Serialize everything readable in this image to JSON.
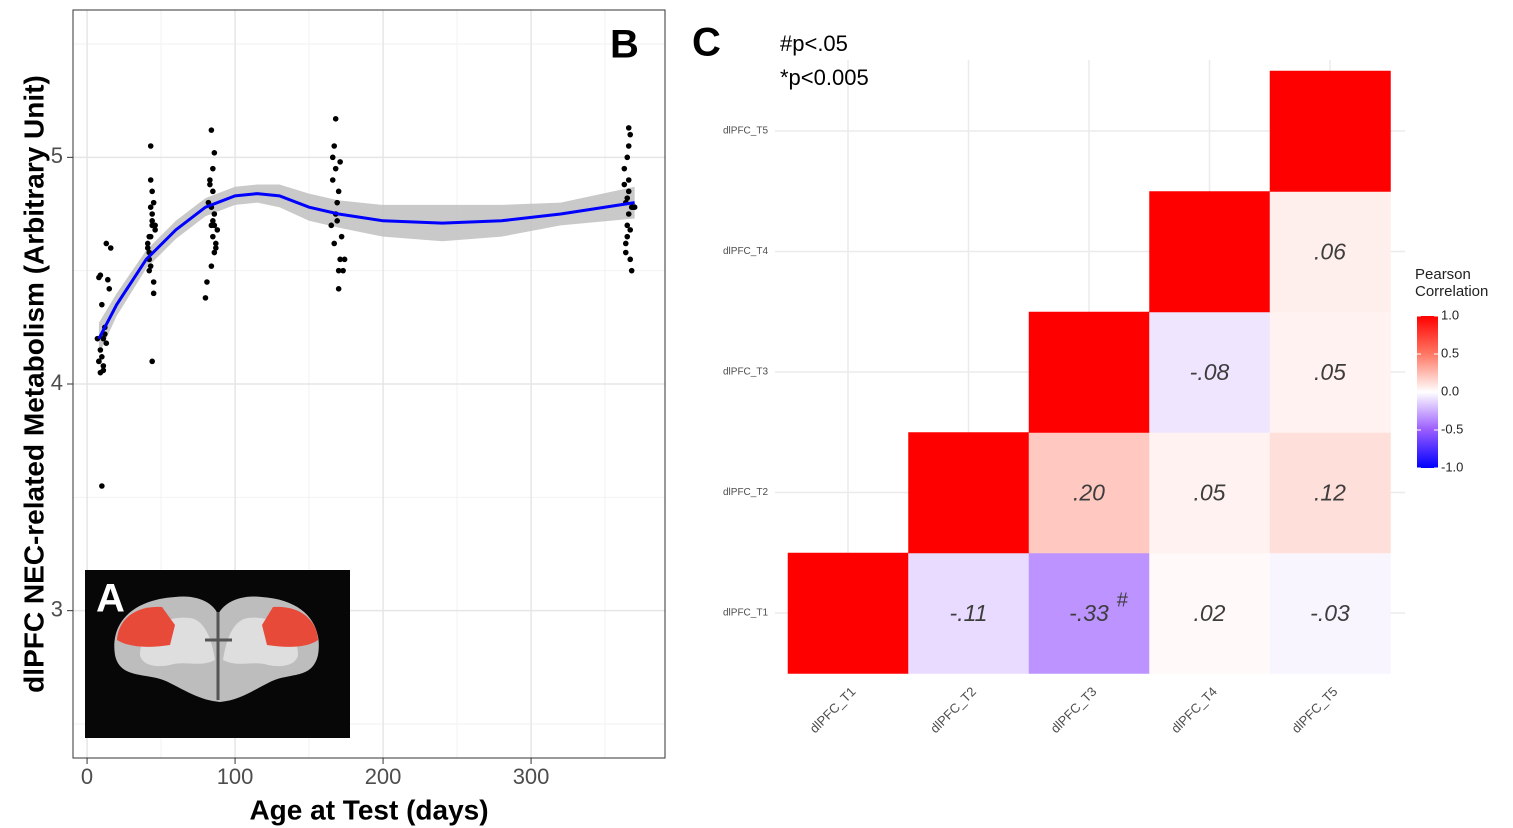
{
  "panel_labels": {
    "a": "A",
    "b": "B",
    "c": "C"
  },
  "chart_data": [
    {
      "type": "scatter",
      "xlabel": "Age at Test (days)",
      "ylabel": "dlPFC NEC-related Metabolism (Arbitrary Unit)",
      "xlim": [
        -9.5,
        390.5
      ],
      "ylim": [
        2.35,
        5.65
      ],
      "xticks": [
        0,
        100,
        200,
        300
      ],
      "yticks": [
        3,
        4,
        5
      ],
      "xminor": [
        50,
        150,
        250,
        350
      ],
      "yminor": [
        2.5,
        3.5,
        4.5,
        5.5
      ],
      "grid": true,
      "points": {
        "color": "#000000",
        "x": [
          8,
          9,
          10,
          7,
          12,
          11,
          9,
          14,
          13,
          10,
          8,
          16,
          12,
          11,
          9,
          10,
          13,
          15,
          8,
          11,
          42,
          43,
          44,
          45,
          41,
          43,
          44,
          42,
          45,
          46,
          43,
          44,
          42,
          41,
          45,
          44,
          43,
          46,
          42,
          44,
          43,
          82,
          84,
          85,
          86,
          83,
          87,
          85,
          84,
          88,
          81,
          86,
          85,
          84,
          83,
          87,
          86,
          80,
          85,
          84,
          86,
          166,
          168,
          170,
          167,
          169,
          172,
          165,
          168,
          171,
          170,
          166,
          174,
          169,
          167,
          168,
          173,
          170,
          171,
          364,
          366,
          365,
          367,
          363,
          368,
          366,
          365,
          364,
          367,
          369,
          366,
          365,
          368,
          363,
          366,
          367,
          370,
          364,
          366,
          365
        ],
        "y": [
          4.47,
          4.05,
          4.12,
          4.2,
          4.22,
          4.08,
          4.15,
          4.46,
          4.18,
          4.35,
          4.1,
          4.6,
          4.25,
          4.2,
          4.48,
          3.55,
          4.62,
          4.42,
          4.1,
          4.06,
          4.55,
          4.65,
          4.7,
          4.8,
          4.6,
          4.9,
          4.75,
          4.5,
          4.45,
          4.7,
          5.05,
          4.85,
          4.65,
          4.62,
          4.4,
          4.1,
          4.78,
          4.68,
          4.58,
          4.72,
          4.52,
          4.8,
          4.7,
          4.85,
          4.75,
          4.9,
          4.62,
          4.95,
          5.12,
          4.68,
          4.45,
          4.58,
          4.72,
          4.78,
          4.88,
          4.6,
          5.02,
          4.38,
          4.65,
          4.52,
          4.7,
          5.0,
          4.95,
          4.85,
          5.05,
          4.72,
          4.65,
          4.7,
          5.17,
          4.55,
          4.5,
          4.9,
          4.55,
          4.8,
          4.62,
          4.75,
          4.5,
          4.42,
          4.98,
          4.8,
          4.85,
          5.0,
          5.1,
          4.95,
          4.78,
          4.9,
          4.7,
          4.62,
          4.55,
          4.78,
          5.13,
          4.65,
          4.5,
          4.88,
          4.75,
          4.68,
          4.78,
          4.58,
          5.05,
          4.82
        ]
      },
      "fit": {
        "color": "#0000ff",
        "band_color": "#bfbfbf",
        "x": [
          8,
          20,
          40,
          60,
          80,
          100,
          115,
          130,
          150,
          170,
          200,
          240,
          280,
          320,
          370
        ],
        "y": [
          4.2,
          4.35,
          4.55,
          4.68,
          4.78,
          4.83,
          4.84,
          4.83,
          4.78,
          4.75,
          4.72,
          4.71,
          4.72,
          4.75,
          4.8
        ],
        "lower": [
          4.13,
          4.3,
          4.51,
          4.64,
          4.74,
          4.79,
          4.8,
          4.78,
          4.72,
          4.69,
          4.65,
          4.63,
          4.65,
          4.7,
          4.73
        ],
        "upper": [
          4.27,
          4.4,
          4.59,
          4.72,
          4.82,
          4.87,
          4.88,
          4.88,
          4.84,
          4.81,
          4.79,
          4.79,
          4.79,
          4.8,
          4.87
        ]
      }
    },
    {
      "type": "heatmap",
      "x": [
        "dlPFC_T1",
        "dlPFC_T2",
        "dlPFC_T3",
        "dlPFC_T4",
        "dlPFC_T5"
      ],
      "y": [
        "dlPFC_T1",
        "dlPFC_T2",
        "dlPFC_T3",
        "dlPFC_T4",
        "dlPFC_T5"
      ],
      "values": [
        [
          1,
          -0.11,
          -0.33,
          0.02,
          -0.03
        ],
        [
          null,
          1,
          0.2,
          0.05,
          0.12
        ],
        [
          null,
          null,
          1,
          -0.08,
          0.05
        ],
        [
          null,
          null,
          null,
          1,
          0.06
        ],
        [
          null,
          null,
          null,
          null,
          1
        ]
      ],
      "value_labels": [
        [
          null,
          "-.11",
          "-.33",
          ".02",
          "-.03"
        ],
        [
          null,
          null,
          ".20",
          ".05",
          ".12"
        ],
        [
          null,
          null,
          null,
          "-.08",
          ".05"
        ],
        [
          null,
          null,
          null,
          null,
          ".06"
        ],
        [
          null,
          null,
          null,
          null,
          null
        ]
      ],
      "significance": [
        [
          null,
          null,
          "#",
          null,
          null
        ],
        [
          null,
          null,
          null,
          null,
          null
        ],
        [
          null,
          null,
          null,
          null,
          null
        ],
        [
          null,
          null,
          null,
          null,
          null
        ],
        [
          null,
          null,
          null,
          null,
          null
        ]
      ],
      "annotations": [
        "#p<.05",
        "*p<0.005"
      ],
      "legend_title": "Pearson Correlation",
      "clim": [
        -1,
        1
      ],
      "colors": [
        "#0000ff",
        "#9a5cff",
        "#ffffff",
        "#ff7864",
        "#ff0000"
      ],
      "cticks": [
        {
          "value": 1,
          "label": "1.0"
        },
        0.5,
        {
          "value": 0,
          "label": "0.0"
        },
        -0.5,
        {
          "value": -1,
          "label": "-1.0"
        }
      ]
    }
  ]
}
